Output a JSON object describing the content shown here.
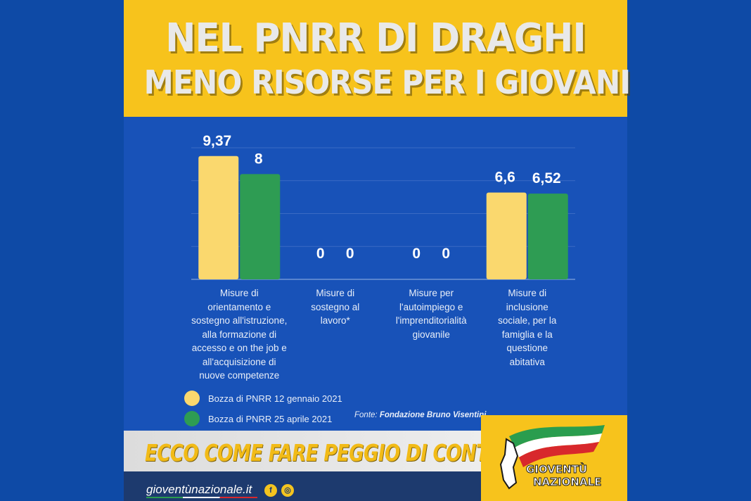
{
  "title": {
    "line1": "NEL PNRR DI DRAGHI",
    "line2": "MENO RISORSE PER I GIOVANI"
  },
  "chart_data": {
    "type": "bar",
    "categories": [
      "Misure di orientamento e sostegno all'istruzione, alla formazione di accesso e on the job e all'acquisizione di nuove competenze",
      "Misure di sostegno al lavoro*",
      "Misure per l'autoimpiego e l'imprenditorialità giovanile",
      "Misure di inclusione sociale, per la famiglia e la questione abitativa"
    ],
    "category_lines": [
      [
        "Misure di",
        "orientamento e",
        "sostegno all'istruzione,",
        "alla formazione di",
        "accesso e on the job e",
        "all'acquisizione di",
        "nuove competenze"
      ],
      [
        "Misure di",
        "sostegno al",
        "lavoro*"
      ],
      [
        "Misure per",
        "l'autoimpiego e",
        "l'imprenditorialità",
        "giovanile"
      ],
      [
        "Misure di",
        "inclusione",
        "sociale, per la",
        "famiglia e la",
        "questione",
        "abitativa"
      ]
    ],
    "series": [
      {
        "name": "Bozza di PNRR 12 gennaio 2021",
        "color": "#fad86e",
        "values": [
          9.37,
          0,
          0,
          6.6
        ],
        "labels": [
          "9,37",
          "0",
          "0",
          "6,6"
        ]
      },
      {
        "name": "Bozza di PNRR 25 aprile 2021",
        "color": "#2e9c53",
        "values": [
          8,
          0,
          0,
          6.52
        ],
        "labels": [
          "8",
          "0",
          "0",
          "6,52"
        ]
      }
    ],
    "ylim": [
      0,
      10
    ],
    "grid": true,
    "legend": "bottom-left"
  },
  "source": {
    "prefix": "Fonte:",
    "name": "Fondazione Bruno Visentini"
  },
  "slogan": "ECCO COME FARE PEGGIO DI CONTE",
  "footer": {
    "site": "gioventùnazionale.it",
    "social": [
      "facebook-icon",
      "instagram-icon"
    ]
  },
  "logo": {
    "line1": "GIOVENTÙ",
    "line2": "NAZIONALE",
    "colors": [
      "#2a9d4e",
      "#ffffff",
      "#d8282c"
    ]
  }
}
